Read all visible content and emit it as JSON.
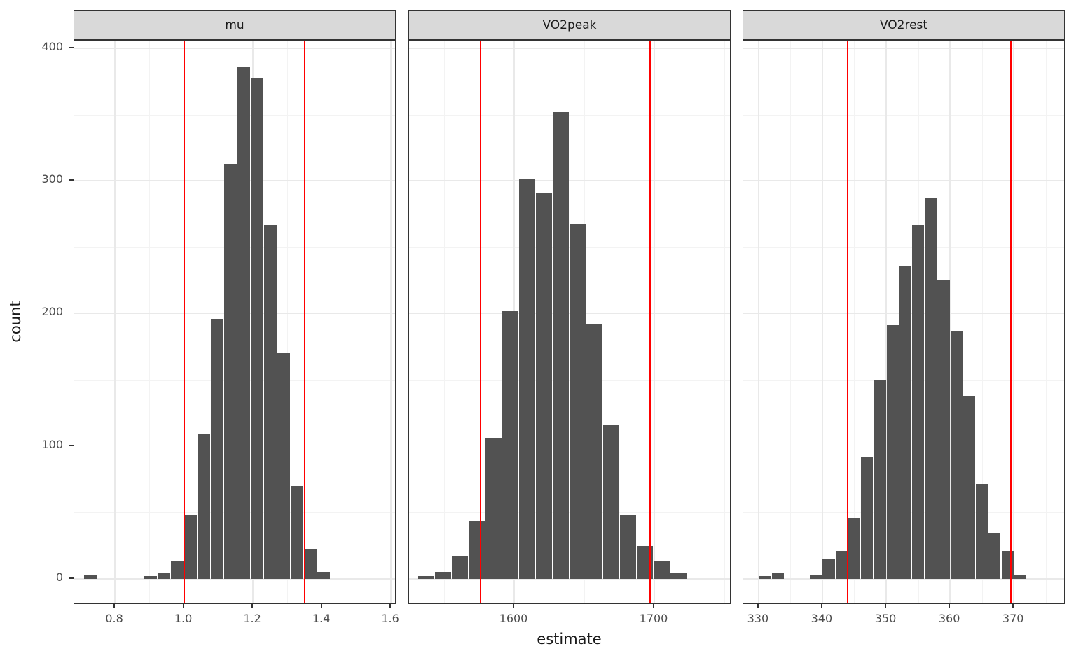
{
  "figure": {
    "y_axis_title": "count",
    "x_axis_title": "estimate",
    "ylim": [
      -19.6,
      405.8
    ],
    "y_ticks": [
      0,
      100,
      200,
      300,
      400
    ],
    "y_tick_labels": [
      "0",
      "100",
      "200",
      "300",
      "400"
    ],
    "y_minor": [
      50,
      150,
      250,
      350
    ],
    "colors": {
      "bar_fill": "#525252",
      "vline": "#ff0000",
      "strip_bg": "#d9d9d9",
      "panel_border": "#333333",
      "grid_major": "#e9e9e9",
      "grid_minor": "#f3f3f3",
      "axis_text": "#4d4d4d",
      "title_text": "#1a1a1a"
    }
  },
  "chart_data": [
    {
      "type": "bar",
      "subtype": "histogram",
      "facet": "mu",
      "xlabel": "estimate",
      "ylabel": "count",
      "xlim": [
        0.682,
        1.616
      ],
      "x_ticks": [
        0.8,
        1.0,
        1.2,
        1.4,
        1.6
      ],
      "x_tick_labels": [
        "0.8",
        "1.0",
        "1.2",
        "1.4",
        "1.6"
      ],
      "x_minor": [
        0.7,
        0.9,
        1.1,
        1.3,
        1.5
      ],
      "bin_width": 0.0386,
      "bin_centers": [
        0.7286,
        0.9036,
        0.9421,
        0.9807,
        1.0193,
        1.0579,
        1.0964,
        1.135,
        1.1736,
        1.2121,
        1.2507,
        1.2893,
        1.3279,
        1.3664,
        1.405
      ],
      "counts": [
        3,
        2,
        4,
        13,
        48,
        109,
        196,
        313,
        386,
        377,
        267,
        170,
        70,
        22,
        5
      ],
      "vlines": [
        1.0,
        1.35
      ]
    },
    {
      "type": "bar",
      "subtype": "histogram",
      "facet": "VO2peak",
      "xlabel": "estimate",
      "ylabel": "count",
      "xlim": [
        1525,
        1755
      ],
      "x_ticks": [
        1600,
        1700
      ],
      "x_tick_labels": [
        "1600",
        "1700"
      ],
      "x_minor": [
        1550,
        1650,
        1750
      ],
      "bin_width": 12,
      "bin_centers": [
        1537,
        1549,
        1561,
        1573,
        1585,
        1597,
        1609,
        1621,
        1633,
        1645,
        1657,
        1669,
        1681,
        1693,
        1705,
        1717
      ],
      "counts": [
        2,
        5,
        17,
        44,
        106,
        202,
        301,
        291,
        352,
        268,
        192,
        116,
        48,
        25,
        13,
        4
      ],
      "vlines": [
        1576,
        1697
      ]
    },
    {
      "type": "bar",
      "subtype": "histogram",
      "facet": "VO2rest",
      "xlabel": "estimate",
      "ylabel": "count",
      "xlim": [
        327.6,
        378.1
      ],
      "x_ticks": [
        330,
        340,
        350,
        360,
        370
      ],
      "x_tick_labels": [
        "330",
        "340",
        "350",
        "360",
        "370"
      ],
      "x_minor": [
        335,
        345,
        355,
        365,
        375
      ],
      "bin_width": 2,
      "bin_centers": [
        331,
        333,
        339,
        341,
        343,
        345,
        347,
        349,
        351,
        353,
        355,
        357,
        359,
        361,
        363,
        365,
        367,
        369,
        371
      ],
      "counts": [
        2,
        4,
        3,
        15,
        21,
        46,
        92,
        150,
        191,
        236,
        267,
        287,
        225,
        187,
        138,
        72,
        35,
        21,
        3
      ],
      "vlines": [
        344,
        369.5
      ]
    }
  ]
}
